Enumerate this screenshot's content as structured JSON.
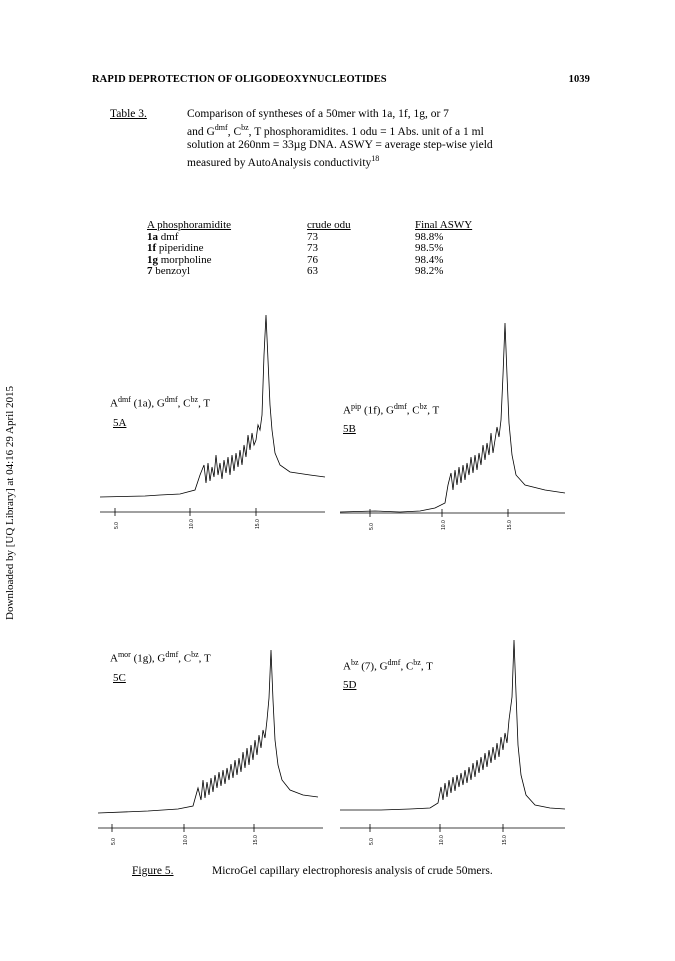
{
  "header": {
    "title": "RAPID DEPROTECTION OF OLIGODEOXYNUCLEOTIDES",
    "page_number": "1039"
  },
  "sidenote": "Downloaded by [UQ Library] at 04:16 29 April 2015",
  "table": {
    "label": "Table 3.",
    "caption_line1": "Comparison of syntheses of a 50mer with 1a, 1f, 1g, or 7",
    "caption_line2_pre": "and G",
    "caption_line2_sup1": "dmf",
    "caption_line2_mid": ", C",
    "caption_line2_sup2": "bz",
    "caption_line2_post": ", T phosphoramidites. 1 odu = 1 Abs. unit of a 1 ml",
    "caption_line3": "solution at 260nm = 33µg DNA.  ASWY = average step-wise yield",
    "caption_line4": "measured by AutoAnalysis conductivity",
    "caption_ref": "18",
    "columns": [
      "A phosphoramidite",
      "crude odu",
      "Final ASWY"
    ],
    "rows": [
      {
        "id": "1a",
        "name": "dmf",
        "odu": "73",
        "aswy": "98.8%"
      },
      {
        "id": "1f",
        "name": "piperidine",
        "odu": "73",
        "aswy": "98.5%"
      },
      {
        "id": "1g",
        "name": "morpholine",
        "odu": "76",
        "aswy": "98.4%"
      },
      {
        "id": "7",
        "name": "benzoyl",
        "odu": "63",
        "aswy": "98.2%"
      }
    ]
  },
  "panels": [
    {
      "a_base": "A",
      "a_sup": "dmf",
      "compound": "(1a)",
      "rest_pre": ", G",
      "rest_sup1": "dmf",
      "rest_mid": ", C",
      "rest_sup2": "bz",
      "rest_post": ", T",
      "id": "5A",
      "ticks": [
        "5.0",
        "10.0",
        "15.0"
      ]
    },
    {
      "a_base": "A",
      "a_sup": "pip",
      "compound": "(1f)",
      "rest_pre": ", G",
      "rest_sup1": "dmf",
      "rest_mid": ", C",
      "rest_sup2": "bz",
      "rest_post": ", T",
      "id": "5B",
      "ticks": [
        "5.0",
        "10.0",
        "15.0"
      ]
    },
    {
      "a_base": "A",
      "a_sup": "mor",
      "compound": "(1g)",
      "rest_pre": ", G",
      "rest_sup1": "dmf",
      "rest_mid": ", C",
      "rest_sup2": "bz",
      "rest_post": ", T",
      "id": "5C",
      "ticks": [
        "5.0",
        "10.0",
        "15.0"
      ]
    },
    {
      "a_base": "A",
      "a_sup": "bz",
      "compound": "(7)",
      "rest_pre": ", G",
      "rest_sup1": "dmf",
      "rest_mid": ", C",
      "rest_sup2": "bz",
      "rest_post": ", T",
      "id": "5D",
      "ticks": [
        "5.0",
        "10.0",
        "15.0"
      ]
    }
  ],
  "figure": {
    "label": "Figure 5.",
    "caption": "MicroGel capillary electrophoresis analysis of crude 50mers."
  }
}
